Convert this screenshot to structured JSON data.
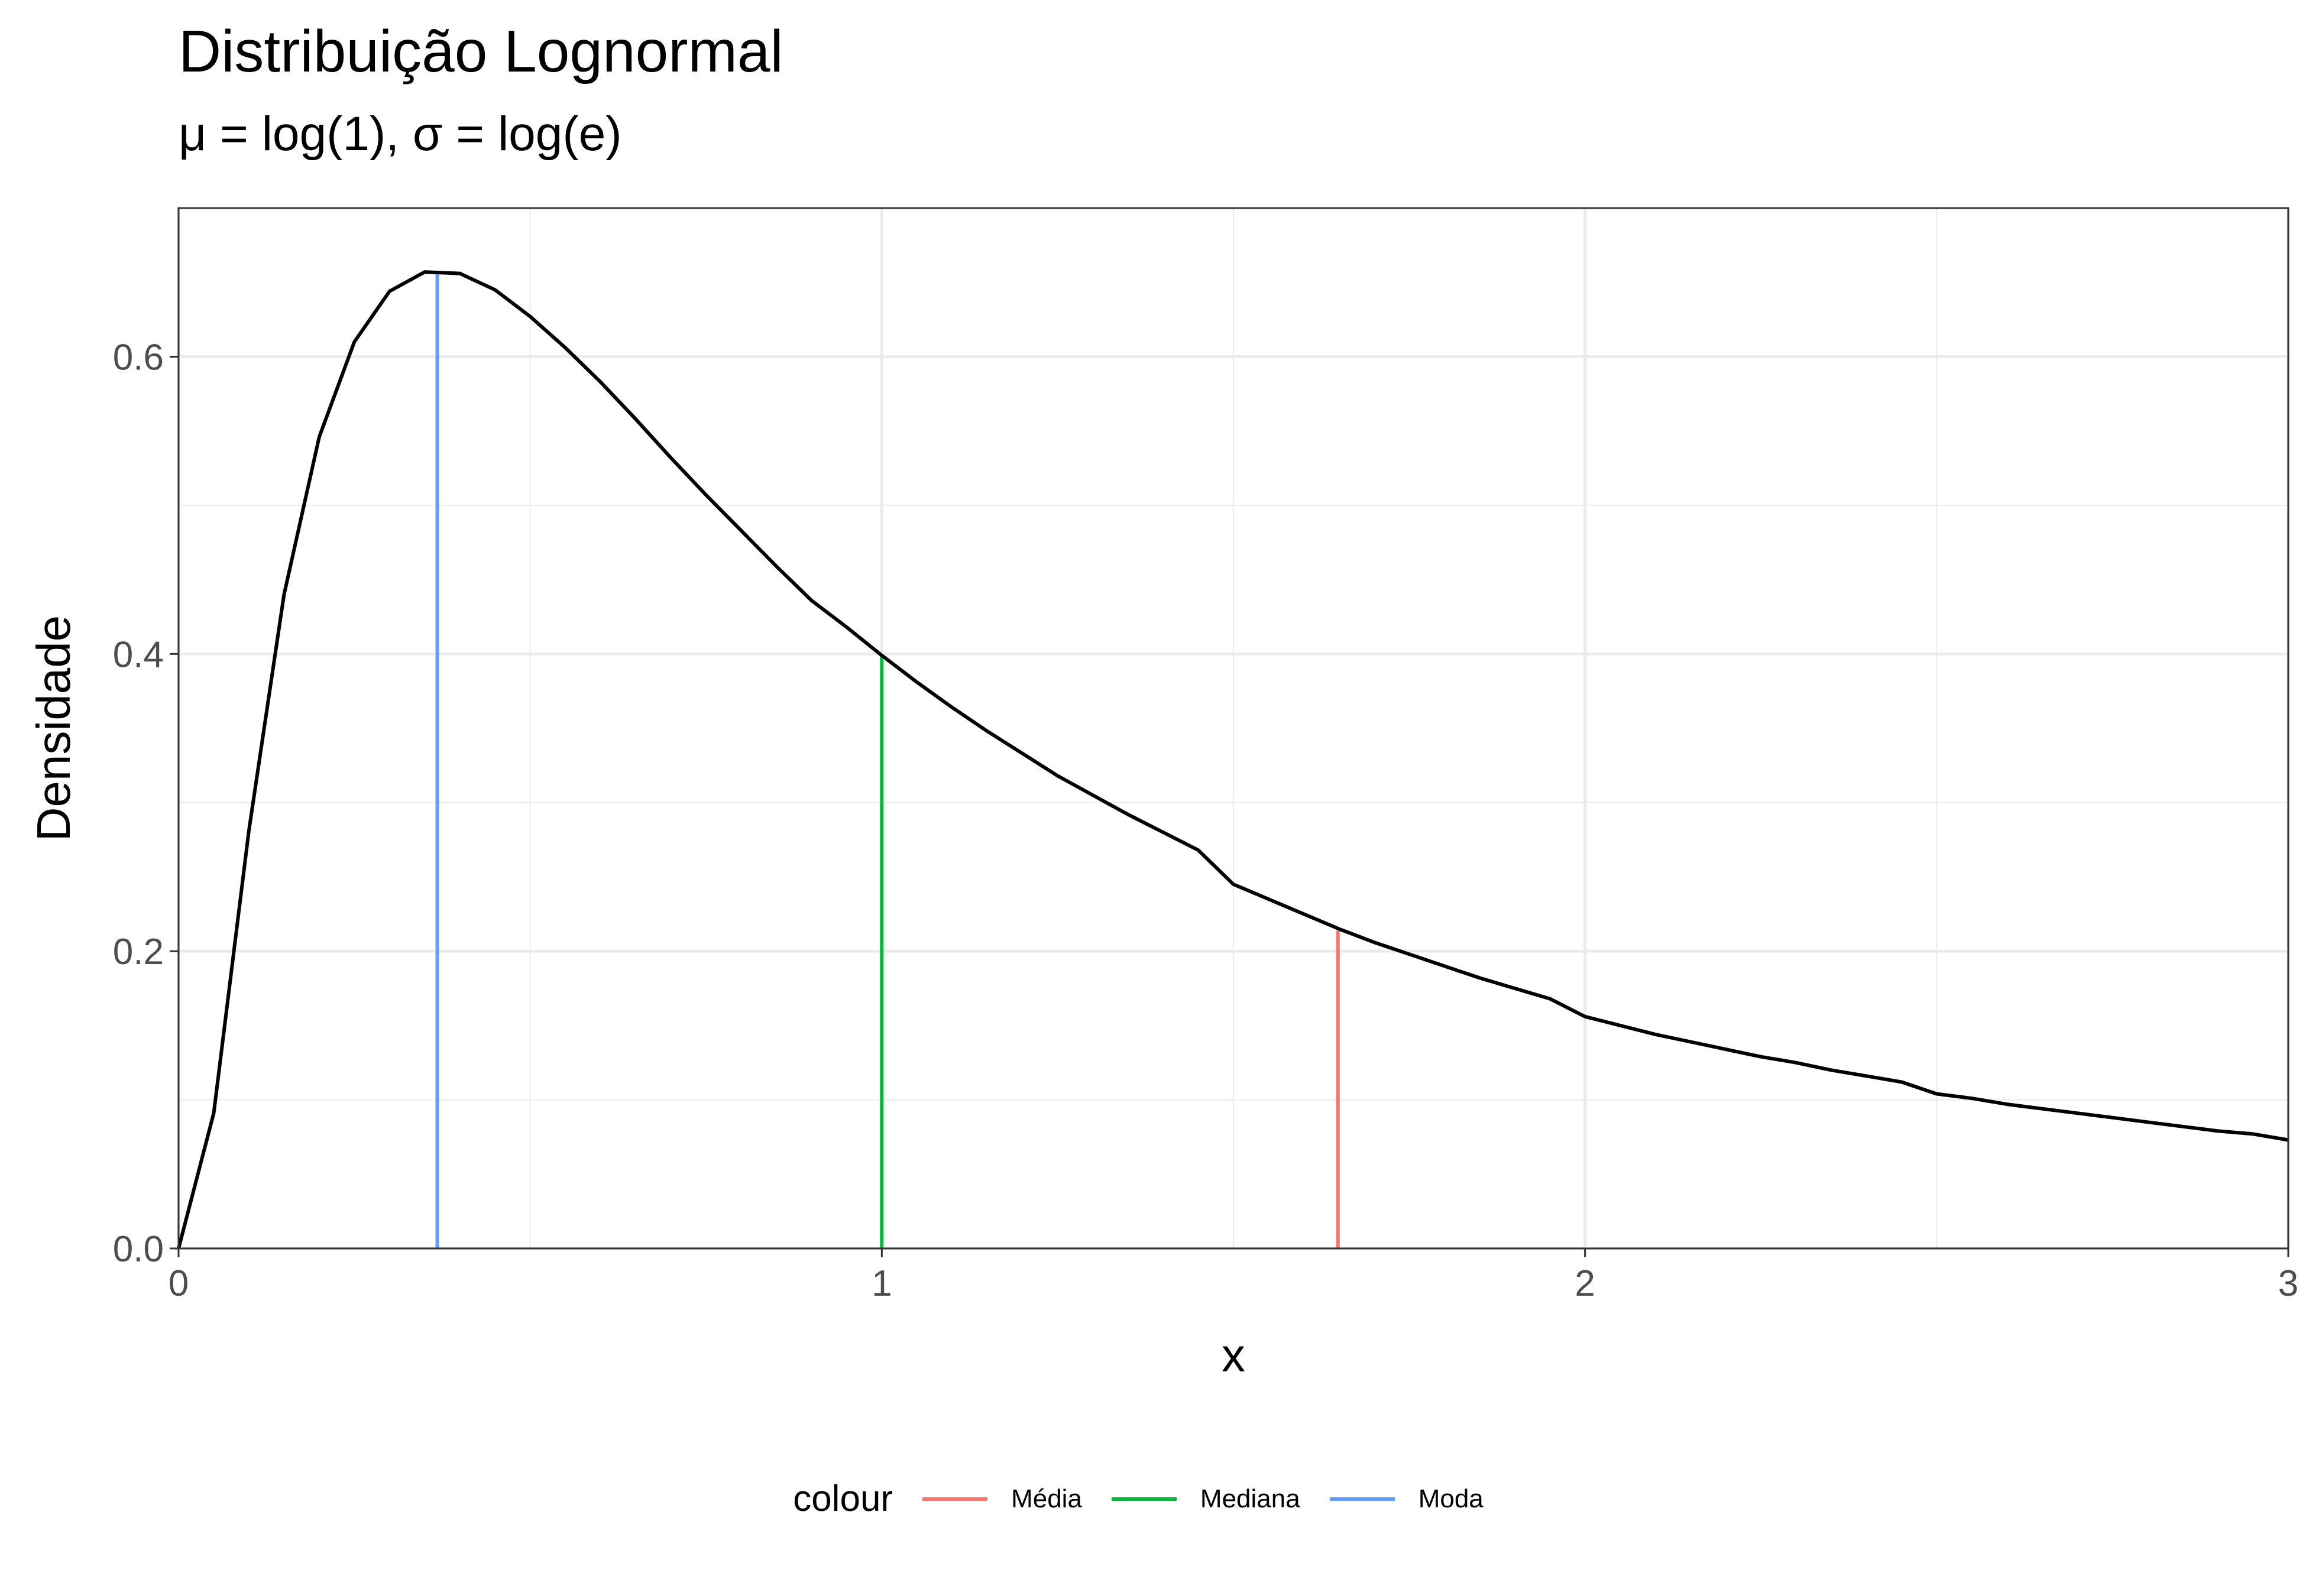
{
  "chart_data": {
    "type": "line",
    "title": "Distribuição Lognormal",
    "subtitle": "μ = log(1), σ = log(e)",
    "xlabel": "x",
    "ylabel": "Densidade",
    "xlim": [
      0,
      3
    ],
    "ylim": [
      0,
      0.7
    ],
    "x_ticks": [
      0,
      1,
      2,
      3
    ],
    "x_tick_labels": [
      "0",
      "1",
      "2",
      "3"
    ],
    "y_ticks": [
      0.0,
      0.2,
      0.4,
      0.6
    ],
    "y_tick_labels": [
      "0.0",
      "0.2",
      "0.4",
      "0.6"
    ],
    "grid": true,
    "legend_position": "bottom",
    "legend_title": "colour",
    "curve": {
      "x": [
        0,
        0.05,
        0.1,
        0.15,
        0.2,
        0.25,
        0.3,
        0.35,
        0.4,
        0.45,
        0.5,
        0.55,
        0.6,
        0.65,
        0.7,
        0.75,
        0.8,
        0.85,
        0.9,
        0.95,
        1.0,
        1.05,
        1.1,
        1.15,
        1.2,
        1.25,
        1.3,
        1.35,
        1.4,
        1.45,
        1.5,
        1.55,
        1.6,
        1.65,
        1.7,
        1.75,
        1.8,
        1.85,
        1.9,
        1.95,
        2.0,
        2.05,
        2.1,
        2.15,
        2.2,
        2.25,
        2.3,
        2.35,
        2.4,
        2.45,
        2.5,
        2.55,
        2.6,
        2.65,
        2.7,
        2.75,
        2.8,
        2.85,
        2.9,
        2.95,
        3.0
      ],
      "y": [
        0,
        0.091,
        0.281,
        0.44,
        0.546,
        0.61,
        0.644,
        0.657,
        0.656,
        0.645,
        0.627,
        0.606,
        0.583,
        0.558,
        0.532,
        0.507,
        0.483,
        0.459,
        0.436,
        0.418,
        0.399,
        0.381,
        0.364,
        0.348,
        0.333,
        0.318,
        0.305,
        0.292,
        0.28,
        0.268,
        0.245,
        0.235,
        0.225,
        0.215,
        0.206,
        0.198,
        0.19,
        0.182,
        0.175,
        0.168,
        0.156,
        0.15,
        0.144,
        0.139,
        0.134,
        0.129,
        0.125,
        0.12,
        0.116,
        0.112,
        0.104,
        0.101,
        0.097,
        0.094,
        0.091,
        0.088,
        0.085,
        0.082,
        0.079,
        0.077,
        0.073
      ],
      "color": "#000000"
    },
    "series": [
      {
        "name": "Média",
        "x": 1.6487,
        "y": 0.2138,
        "color": "#F8766D"
      },
      {
        "name": "Mediana",
        "x": 1.0,
        "y": 0.3989,
        "color": "#00BA38"
      },
      {
        "name": "Moda",
        "x": 0.3679,
        "y": 0.6577,
        "color": "#619CFF"
      }
    ]
  }
}
